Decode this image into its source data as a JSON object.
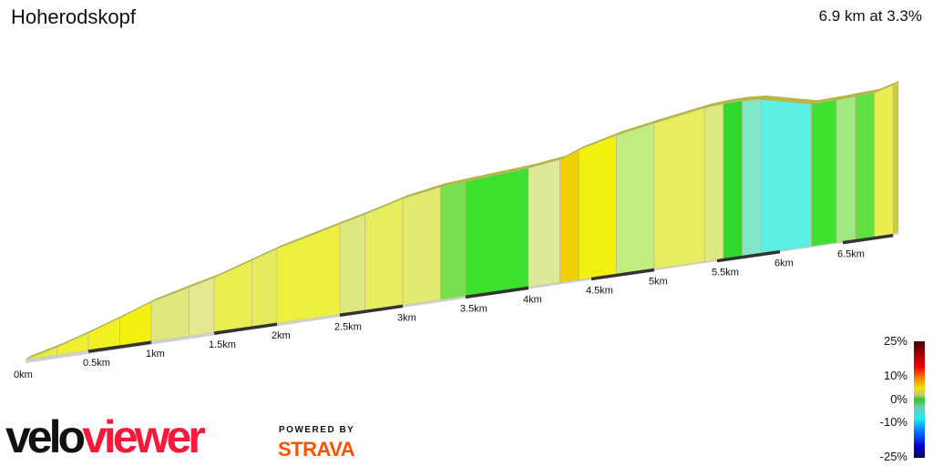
{
  "header": {
    "title": "Hoherodskopf",
    "summary": "6.9 km at 3.3%"
  },
  "chart_data": {
    "type": "area",
    "title": "Hoherodskopf",
    "total_distance_km": 6.9,
    "average_grade_pct": 3.3,
    "x_ticks": [
      "0km",
      "0.5km",
      "1km",
      "1.5km",
      "2km",
      "2.5km",
      "3km",
      "3.5km",
      "4km",
      "4.5km",
      "5km",
      "5.5km",
      "6km",
      "6.5km"
    ],
    "segments": [
      {
        "from_km": 0.0,
        "to_km": 0.25,
        "grade_pct": 5.0,
        "color": "#e8ee40"
      },
      {
        "from_km": 0.25,
        "to_km": 0.5,
        "grade_pct": 6.2,
        "color": "#eef030"
      },
      {
        "from_km": 0.5,
        "to_km": 0.75,
        "grade_pct": 6.8,
        "color": "#f2f020"
      },
      {
        "from_km": 0.75,
        "to_km": 1.0,
        "grade_pct": 7.2,
        "color": "#f5f010"
      },
      {
        "from_km": 1.0,
        "to_km": 1.3,
        "grade_pct": 5.0,
        "color": "#e0e880"
      },
      {
        "from_km": 1.3,
        "to_km": 1.5,
        "grade_pct": 4.8,
        "color": "#e4e890"
      },
      {
        "from_km": 1.5,
        "to_km": 1.8,
        "grade_pct": 6.4,
        "color": "#eaee50"
      },
      {
        "from_km": 1.8,
        "to_km": 2.0,
        "grade_pct": 6.4,
        "color": "#e6ea60"
      },
      {
        "from_km": 2.0,
        "to_km": 2.5,
        "grade_pct": 5.0,
        "color": "#eef040"
      },
      {
        "from_km": 2.5,
        "to_km": 2.7,
        "grade_pct": 4.8,
        "color": "#dde880"
      },
      {
        "from_km": 2.7,
        "to_km": 3.0,
        "grade_pct": 5.5,
        "color": "#e6ee60"
      },
      {
        "from_km": 3.0,
        "to_km": 3.3,
        "grade_pct": 3.4,
        "color": "#e4ea70"
      },
      {
        "from_km": 3.3,
        "to_km": 3.5,
        "grade_pct": 1.5,
        "color": "#78e050"
      },
      {
        "from_km": 3.5,
        "to_km": 4.0,
        "grade_pct": 1.4,
        "color": "#3ee030"
      },
      {
        "from_km": 4.0,
        "to_km": 4.25,
        "grade_pct": 2.5,
        "color": "#dde898"
      },
      {
        "from_km": 4.25,
        "to_km": 4.4,
        "grade_pct": 7.5,
        "color": "#f0d000"
      },
      {
        "from_km": 4.4,
        "to_km": 4.7,
        "grade_pct": 5.0,
        "color": "#f2f010"
      },
      {
        "from_km": 4.7,
        "to_km": 5.0,
        "grade_pct": 3.5,
        "color": "#c0ec80"
      },
      {
        "from_km": 5.0,
        "to_km": 5.4,
        "grade_pct": 3.2,
        "color": "#e6ee60"
      },
      {
        "from_km": 5.4,
        "to_km": 5.55,
        "grade_pct": 1.5,
        "color": "#dde880"
      },
      {
        "from_km": 5.55,
        "to_km": 5.7,
        "grade_pct": 0.3,
        "color": "#30d830"
      },
      {
        "from_km": 5.7,
        "to_km": 5.85,
        "grade_pct": -1.5,
        "color": "#80e8c8"
      },
      {
        "from_km": 5.85,
        "to_km": 6.25,
        "grade_pct": -4.8,
        "color": "#5cefe4"
      },
      {
        "from_km": 6.25,
        "to_km": 6.45,
        "grade_pct": 0.5,
        "color": "#40e030"
      },
      {
        "from_km": 6.45,
        "to_km": 6.6,
        "grade_pct": 1.0,
        "color": "#a0e880"
      },
      {
        "from_km": 6.6,
        "to_km": 6.75,
        "grade_pct": 0.8,
        "color": "#60e040"
      },
      {
        "from_km": 6.75,
        "to_km": 6.9,
        "grade_pct": 5.5,
        "color": "#e8ee50"
      }
    ],
    "legend": {
      "ticks": [
        "25%",
        "10%",
        "0%",
        "-10%",
        "-25%"
      ]
    },
    "grid": false
  },
  "branding": {
    "logo_dark": "velo",
    "logo_red": "viewer",
    "powered_by": "POWERED BY",
    "strava": "STRAVA"
  }
}
